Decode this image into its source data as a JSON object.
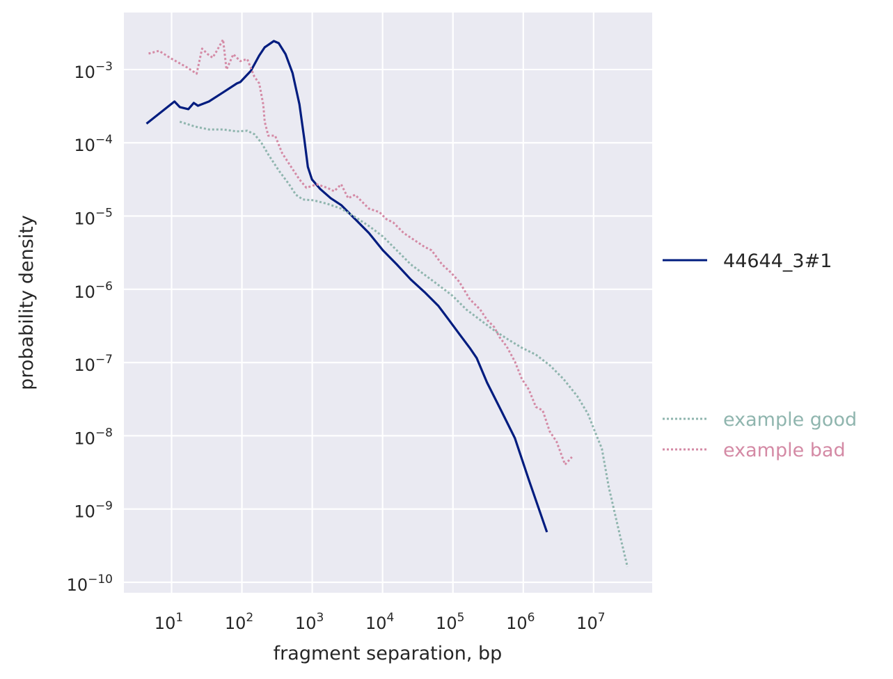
{
  "chart_data": {
    "type": "line",
    "title": "",
    "xlabel": "fragment separation, bp",
    "ylabel": "probability density",
    "xscale": "log",
    "yscale": "log",
    "xlim": [
      2.1,
      68000000
    ],
    "ylim": [
      7.2e-11,
      0.006
    ],
    "grid": true,
    "background": "#eaeaf2",
    "x_ticks": [
      {
        "value": 10,
        "base": "10",
        "exp": "1"
      },
      {
        "value": 100,
        "base": "10",
        "exp": "2"
      },
      {
        "value": 1000,
        "base": "10",
        "exp": "3"
      },
      {
        "value": 10000,
        "base": "10",
        "exp": "4"
      },
      {
        "value": 100000,
        "base": "10",
        "exp": "5"
      },
      {
        "value": 1000000,
        "base": "10",
        "exp": "6"
      },
      {
        "value": 10000000,
        "base": "10",
        "exp": "7"
      }
    ],
    "y_ticks": [
      {
        "value": 0.001,
        "base": "10",
        "exp": "−3"
      },
      {
        "value": 0.0001,
        "base": "10",
        "exp": "−4"
      },
      {
        "value": 1e-05,
        "base": "10",
        "exp": "−5"
      },
      {
        "value": 1e-06,
        "base": "10",
        "exp": "−6"
      },
      {
        "value": 1e-07,
        "base": "10",
        "exp": "−7"
      },
      {
        "value": 1e-08,
        "base": "10",
        "exp": "−8"
      },
      {
        "value": 1e-09,
        "base": "10",
        "exp": "−9"
      },
      {
        "value": 1e-10,
        "base": "10",
        "exp": "−10"
      }
    ],
    "legend_placement": "right, outside",
    "series": [
      {
        "name": "44644_3#1",
        "color": "#001c7f",
        "style": "solid",
        "x": [
          4.4,
          11,
          13.1,
          17.3,
          20.7,
          23.7,
          34,
          54,
          85,
          95,
          134,
          176,
          211,
          284,
          333,
          418,
          524,
          658,
          771,
          865,
          991,
          1303,
          1833,
          2577,
          4064,
          6400,
          10100,
          15900,
          25100,
          39500,
          62300,
          87700,
          123000,
          173000,
          218000,
          306000,
          483000,
          760000,
          1200000,
          2170000
        ],
        "y": [
          0.000182,
          0.000366,
          0.000307,
          0.000288,
          0.00035,
          0.00032,
          0.000366,
          0.000487,
          0.000646,
          0.000675,
          0.000957,
          0.00155,
          0.00201,
          0.00245,
          0.00229,
          0.00162,
          0.000897,
          0.000335,
          0.000112,
          4.68e-05,
          3.16e-05,
          2.33e-05,
          1.75e-05,
          1.41e-05,
          9.09e-06,
          5.86e-06,
          3.4e-06,
          2.19e-06,
          1.36e-06,
          9.14e-07,
          5.9e-07,
          3.81e-07,
          2.46e-07,
          1.59e-07,
          1.15e-07,
          5.32e-08,
          2.22e-08,
          9.27e-09,
          2.5e-09,
          4.84e-10
        ]
      },
      {
        "name": "example good",
        "color": "#8fb5ae",
        "style": "dotted",
        "x": [
          13.1,
          21.7,
          34,
          54,
          85,
          119,
          150,
          188,
          237,
          333,
          468,
          587,
          738,
          1038,
          1633,
          2577,
          4064,
          6400,
          10100,
          15900,
          25100,
          39500,
          62300,
          98000,
          155000,
          244000,
          385000,
          606000,
          956000,
          1510000,
          2370000,
          3740000,
          5900000,
          8300000,
          10400000,
          13100000,
          16400000,
          23100000,
          30300000
        ],
        "y": [
          0.000194,
          0.000166,
          0.000152,
          0.000152,
          0.000143,
          0.000146,
          0.000131,
          0.000101,
          6.94e-05,
          4.2e-05,
          2.71e-05,
          1.95e-05,
          1.68e-05,
          1.64e-05,
          1.47e-05,
          1.26e-05,
          9.7e-06,
          7.3e-06,
          5.26e-06,
          3.4e-06,
          2.19e-06,
          1.58e-06,
          1.14e-06,
          8.19e-07,
          5.29e-07,
          3.81e-07,
          2.75e-07,
          2.07e-07,
          1.59e-07,
          1.28e-07,
          9.2e-08,
          5.94e-08,
          3.44e-08,
          1.99e-08,
          1.15e-08,
          6.68e-09,
          2e-09,
          4.84e-10,
          1.62e-10
        ]
      },
      {
        "name": "example bad",
        "color": "#d48aa5",
        "style": "dotted",
        "x": [
          4.72,
          6.64,
          9.8,
          16.5,
          22.7,
          27.2,
          32.7,
          38.3,
          42.9,
          54,
          60.4,
          75.7,
          95,
          119,
          150,
          176,
          201,
          211,
          237,
          297,
          373,
          501,
          658,
          826,
          1162,
          1633,
          2051,
          2577,
          3236,
          4064,
          5105,
          6400,
          9020,
          11300,
          14200,
          20000,
          28100,
          39500,
          49700,
          69900,
          93800,
          123000,
          173000,
          244000,
          306000,
          385000,
          461000,
          580000,
          760000,
          956000,
          1200000,
          1510000,
          1890000,
          2370000,
          2980000,
          3920000,
          4920000
        ],
        "y": [
          0.00165,
          0.0018,
          0.00142,
          0.00107,
          0.000877,
          0.00193,
          0.00162,
          0.00145,
          0.00173,
          0.00256,
          0.001,
          0.00162,
          0.0013,
          0.00139,
          0.000803,
          0.000646,
          0.000335,
          0.000194,
          0.000125,
          0.000125,
          7.24e-05,
          4.68e-05,
          3.16e-05,
          2.43e-05,
          2.71e-05,
          2.43e-05,
          2.18e-05,
          2.71e-05,
          1.75e-05,
          1.95e-05,
          1.57e-05,
          1.26e-05,
          1.13e-05,
          9.09e-06,
          8.15e-06,
          5.86e-06,
          4.71e-06,
          3.79e-06,
          3.4e-06,
          2.19e-06,
          1.69e-06,
          1.27e-06,
          7.35e-07,
          5.29e-07,
          3.81e-07,
          3.06e-07,
          2.21e-07,
          1.66e-07,
          1.03e-07,
          5.94e-08,
          4.28e-08,
          2.48e-08,
          2.22e-08,
          1.15e-08,
          8.3e-09,
          4.04e-09,
          5.13e-09
        ]
      }
    ]
  }
}
